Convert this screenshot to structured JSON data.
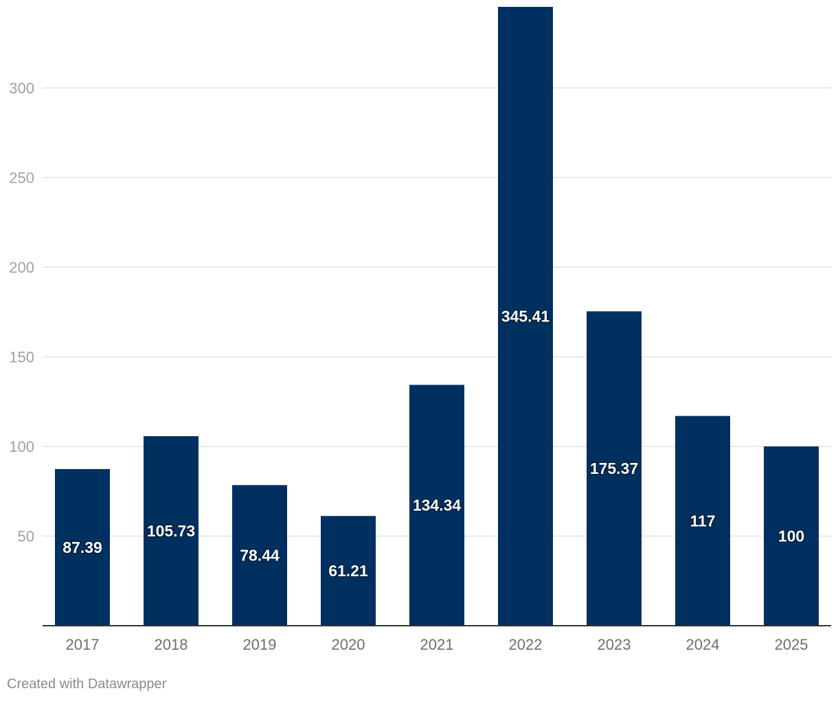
{
  "chart_data": {
    "type": "bar",
    "categories": [
      "2017",
      "2018",
      "2019",
      "2020",
      "2021",
      "2022",
      "2023",
      "2024",
      "2025"
    ],
    "values": [
      87.39,
      105.73,
      78.44,
      61.21,
      134.34,
      345.41,
      175.37,
      117,
      100
    ],
    "value_labels": [
      "87.39",
      "105.73",
      "78.44",
      "61.21",
      "134.34",
      "345.41",
      "175.37",
      "117",
      "100"
    ],
    "yticks": [
      50,
      100,
      150,
      200,
      250,
      300
    ],
    "ylim": [
      0,
      345.41
    ],
    "title": "",
    "xlabel": "",
    "ylabel": "",
    "grid": true,
    "bar_color": "#00305f",
    "label_color": "#ffffff"
  },
  "footer": {
    "credit": "Created with Datawrapper"
  }
}
